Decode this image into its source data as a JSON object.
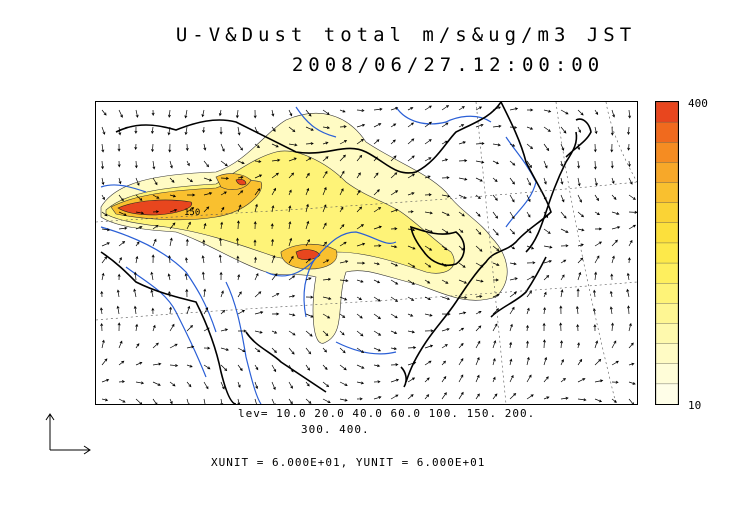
{
  "title": {
    "line1": "U-V&Dust total m/s&ug/m3 JST",
    "line2": "2008/06/27.12:00:00"
  },
  "colorbar": {
    "max_label": "400",
    "min_label": "10",
    "colors": [
      "#e8461e",
      "#f06a1e",
      "#f58c22",
      "#f7a829",
      "#f9c02f",
      "#fad335",
      "#fce03c",
      "#fde94a",
      "#feef5e",
      "#fef378",
      "#fef693",
      "#fef9ad",
      "#fffbc4",
      "#fffdd8",
      "#fffee8"
    ]
  },
  "legend": {
    "levels_line1": "lev= 10.0 20.0 40.0 60.0 100. 150. 200.",
    "levels_line2": "300. 400.",
    "units_line": "XUNIT = 6.000E+01, YUNIT = 6.000E+01"
  },
  "map": {
    "contour_label": "150",
    "colors": {
      "coast": "#000000",
      "river": "#2a5fd6",
      "dust_high": "#e8461e",
      "dust_mid": "#fad335",
      "dust_low": "#fffbc4"
    }
  }
}
